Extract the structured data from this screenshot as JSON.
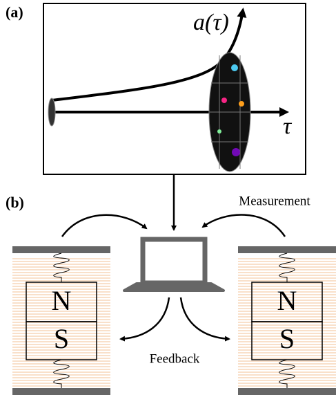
{
  "panel_a": {
    "label": "(a)",
    "curve_label": "a(τ)",
    "axis_label": "τ"
  },
  "panel_b": {
    "label": "(b)",
    "measurement": "Measurement",
    "feedback": "Feedback",
    "magnets": [
      {
        "north": "N",
        "south": "S"
      },
      {
        "north": "N",
        "south": "S"
      }
    ]
  }
}
